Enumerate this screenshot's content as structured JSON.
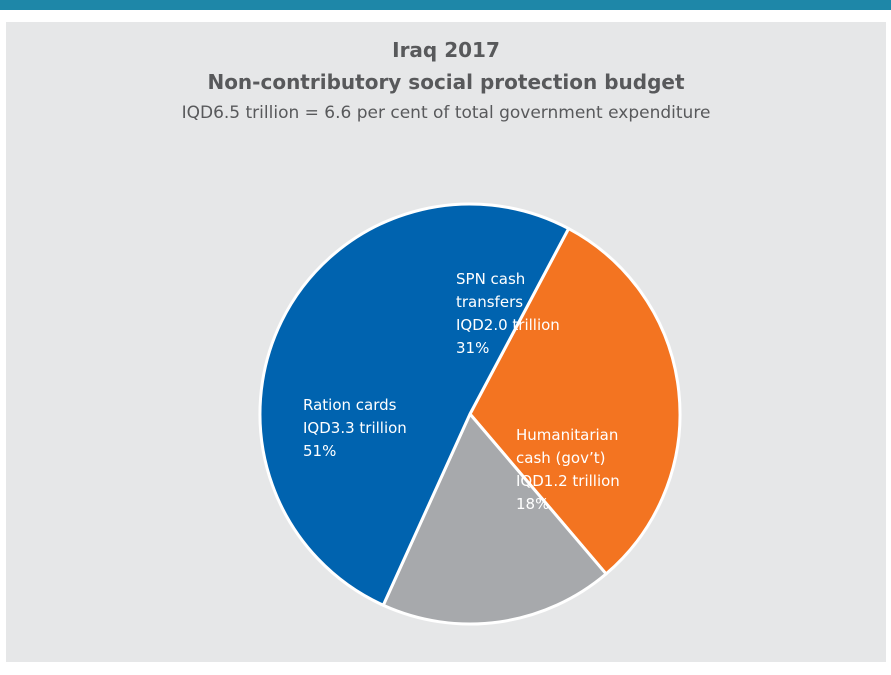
{
  "colors": {
    "top_bar": "#1e87a8",
    "panel_background": "#e6e7e8",
    "text": "#58595b"
  },
  "chart_data": {
    "type": "pie",
    "title_line1": "Iraq 2017",
    "title_line2": "Non-contributory social protection budget",
    "subtitle": "IQD6.5 trillion = 6.6 per cent of total government expenditure",
    "slices": [
      {
        "label_lines": [
          "SPN cash",
          "transfers",
          "IQD2.0 trillion",
          "31%"
        ],
        "value": 31,
        "color": "#f37421"
      },
      {
        "label_lines": [
          "Humanitarian",
          "cash (gov’t)",
          "IQD1.2 trillion",
          "18%"
        ],
        "value": 18,
        "color": "#a7a9ac"
      },
      {
        "label_lines": [
          "Ration cards",
          "IQD3.3 trillion",
          "51%"
        ],
        "value": 51,
        "color": "#0063af"
      }
    ],
    "start_angle_deg": 28
  }
}
